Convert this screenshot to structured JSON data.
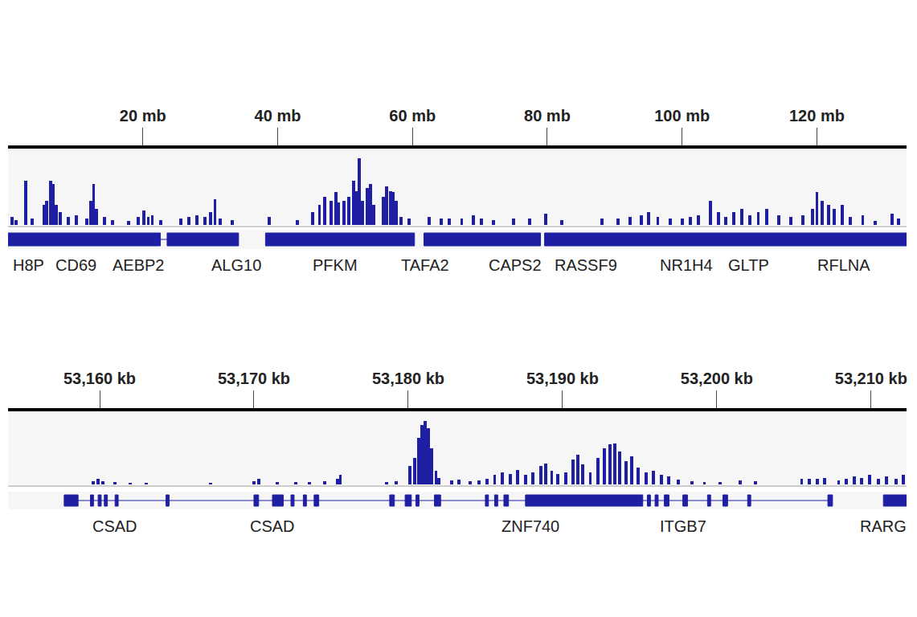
{
  "chart_data": [
    {
      "type": "bar",
      "color": "#1f1fa3",
      "tick_labels": "x",
      "grid": false,
      "xlim": [
        0,
        133.3
      ],
      "ylim": [
        0,
        110
      ],
      "xticks": [
        {
          "value": 20,
          "label": "20 mb"
        },
        {
          "value": 40,
          "label": "40 mb"
        },
        {
          "value": 60,
          "label": "60 mb"
        },
        {
          "value": 80,
          "label": "80 mb"
        },
        {
          "value": 100,
          "label": "100 mb"
        },
        {
          "value": 120,
          "label": "120 mb"
        }
      ],
      "x": [
        0.6,
        1.2,
        2.6,
        3.6,
        5.4,
        5.7,
        6.3,
        6.7,
        7.1,
        7.7,
        8.9,
        10.1,
        11.7,
        12.3,
        12.7,
        13.1,
        14.3,
        15.5,
        17.9,
        19.3,
        20.2,
        20.8,
        21.4,
        22.6,
        25.6,
        26.8,
        28.0,
        29.2,
        30.0,
        30.7,
        31.5,
        33.3,
        38.7,
        42.9,
        45.2,
        46.2,
        47.0,
        47.9,
        48.6,
        49.0,
        49.8,
        50.6,
        51.3,
        51.7,
        52.1,
        52.6,
        53.3,
        53.8,
        54.3,
        55.7,
        56.2,
        56.7,
        57.1,
        57.6,
        58.3,
        59.5,
        62.5,
        64.3,
        65.5,
        67.3,
        69.0,
        70.2,
        72.0,
        75.0,
        77.4,
        79.8,
        82.1,
        88.1,
        90.5,
        92.3,
        94.0,
        95.0,
        96.4,
        98.2,
        100.0,
        101.2,
        102.4,
        104.2,
        105.4,
        106.5,
        107.7,
        108.9,
        110.1,
        111.3,
        112.5,
        114.3,
        116.1,
        117.9,
        119.3,
        120.0,
        120.8,
        121.7,
        122.6,
        123.8,
        125.0,
        126.8,
        128.6,
        131.2,
        132.1
      ],
      "values": [
        12,
        7,
        64,
        9,
        29,
        35,
        64,
        59,
        29,
        18,
        12,
        14,
        9,
        35,
        59,
        23,
        12,
        7,
        6,
        12,
        21,
        12,
        14,
        7,
        9,
        12,
        14,
        12,
        18,
        37,
        9,
        7,
        12,
        7,
        18,
        29,
        41,
        35,
        47,
        33,
        35,
        41,
        64,
        49,
        96,
        35,
        53,
        59,
        29,
        41,
        56,
        49,
        47,
        35,
        12,
        9,
        12,
        9,
        9,
        9,
        14,
        9,
        7,
        9,
        9,
        16,
        7,
        9,
        9,
        12,
        14,
        18,
        12,
        9,
        9,
        12,
        14,
        35,
        18,
        12,
        18,
        23,
        14,
        18,
        23,
        14,
        12,
        14,
        23,
        47,
        35,
        29,
        23,
        29,
        12,
        14,
        6,
        16,
        9
      ],
      "features": {
        "blocks": [
          [
            0,
            22.6
          ],
          [
            23.6,
            34.2
          ],
          [
            38.2,
            60.3
          ],
          [
            61.7,
            79.0
          ],
          [
            79.6,
            133.3
          ]
        ],
        "lines": [
          [
            22.6,
            23.6
          ]
        ]
      },
      "gene_labels": [
        {
          "text": "H8P",
          "x": 3.0
        },
        {
          "text": "CD69",
          "x": 10.1
        },
        {
          "text": "AEBP2",
          "x": 19.3
        },
        {
          "text": "ALG10",
          "x": 33.9
        },
        {
          "text": "PFKM",
          "x": 48.5
        },
        {
          "text": "TAFA2",
          "x": 61.9
        },
        {
          "text": "CAPS2",
          "x": 75.2
        },
        {
          "text": "RASSF9",
          "x": 85.7
        },
        {
          "text": "NR1H4",
          "x": 100.6
        },
        {
          "text": "GLTP",
          "x": 109.9
        },
        {
          "text": "RFLNA",
          "x": 124.0
        }
      ]
    },
    {
      "type": "bar",
      "color": "#1f1fa3",
      "tick_labels": "x",
      "grid": false,
      "xlim": [
        53154.06,
        53212.3
      ],
      "ylim": [
        0,
        110
      ],
      "xticks": [
        {
          "value": 53160,
          "label": "53,160 kb"
        },
        {
          "value": 53170,
          "label": "53,170 kb"
        },
        {
          "value": 53180,
          "label": "53,180 kb"
        },
        {
          "value": 53190,
          "label": "53,190 kb"
        },
        {
          "value": 53200,
          "label": "53,200 kb"
        },
        {
          "value": 53210,
          "label": "53,210 kb"
        }
      ],
      "x": [
        53159.6,
        53159.9,
        53160.2,
        53161.0,
        53162.0,
        53163.0,
        53167.2,
        53170.0,
        53170.3,
        53171.5,
        53172.7,
        53173.6,
        53174.6,
        53175.4,
        53175.6,
        53178.6,
        53179.2,
        53180.1,
        53180.4,
        53180.7,
        53180.9,
        53181.1,
        53181.3,
        53181.5,
        53181.8,
        53182.0,
        53182.8,
        53183.3,
        53184.0,
        53184.6,
        53185.1,
        53185.6,
        53186.1,
        53186.6,
        53187.1,
        53187.6,
        53188.1,
        53188.6,
        53188.9,
        53189.3,
        53189.7,
        53190.2,
        53190.7,
        53191.0,
        53191.3,
        53191.8,
        53192.3,
        53192.7,
        53193.1,
        53193.4,
        53193.7,
        53194.1,
        53194.5,
        53194.9,
        53195.4,
        53195.9,
        53196.4,
        53196.9,
        53197.5,
        53198.4,
        53199.2,
        53200.2,
        53201.5,
        53202.5,
        53205.5,
        53206.0,
        53206.5,
        53207.0,
        53207.9,
        53208.4,
        53208.9,
        53209.4,
        53209.9,
        53210.5,
        53211.0,
        53211.6,
        53212.1
      ],
      "values": [
        5,
        9,
        5,
        4,
        3,
        3,
        3,
        5,
        9,
        4,
        4,
        4,
        5,
        9,
        14,
        4,
        5,
        28,
        40,
        70,
        90,
        96,
        85,
        55,
        20,
        10,
        6,
        7,
        5,
        6,
        9,
        14,
        18,
        16,
        22,
        14,
        18,
        28,
        32,
        21,
        16,
        18,
        38,
        45,
        30,
        18,
        40,
        55,
        60,
        62,
        50,
        35,
        42,
        25,
        18,
        20,
        14,
        12,
        7,
        5,
        4,
        4,
        6,
        5,
        8,
        9,
        8,
        10,
        6,
        9,
        12,
        10,
        14,
        9,
        12,
        9,
        14
      ],
      "features": {
        "blocks": [
          [
            53157.7,
            53158.6
          ],
          [
            53159.4,
            53159.6
          ],
          [
            53159.9,
            53160.1
          ],
          [
            53160.3,
            53160.5
          ],
          [
            53161.0,
            53161.2
          ],
          [
            53164.3,
            53164.5
          ],
          [
            53170.0,
            53170.3
          ],
          [
            53171.2,
            53171.9
          ],
          [
            53172.4,
            53172.6
          ],
          [
            53173.2,
            53173.4
          ],
          [
            53173.9,
            53174.2
          ],
          [
            53178.8,
            53179.1
          ],
          [
            53179.8,
            53180.2
          ],
          [
            53180.5,
            53180.7
          ],
          [
            53181.7,
            53182.1
          ],
          [
            53185.0,
            53185.2
          ],
          [
            53185.6,
            53185.8
          ],
          [
            53186.2,
            53186.5
          ],
          [
            53187.6,
            53195.2
          ],
          [
            53195.5,
            53195.7
          ],
          [
            53196.0,
            53196.2
          ],
          [
            53196.6,
            53196.9
          ],
          [
            53197.8,
            53198.1
          ],
          [
            53199.4,
            53199.6
          ],
          [
            53200.4,
            53200.7
          ],
          [
            53202.0,
            53202.2
          ],
          [
            53207.2,
            53207.5
          ],
          [
            53210.8,
            53212.3
          ]
        ],
        "lines": [
          [
            53157.7,
            53207.5
          ],
          [
            53210.8,
            53212.3
          ]
        ]
      },
      "gene_labels": [
        {
          "text": "CSAD",
          "x": 53161.0
        },
        {
          "text": "CSAD",
          "x": 53171.2
        },
        {
          "text": "ZNF740",
          "x": 53187.9
        },
        {
          "text": "ITGB7",
          "x": 53197.8
        },
        {
          "text": "RARG",
          "x": 53210.8
        }
      ]
    }
  ]
}
